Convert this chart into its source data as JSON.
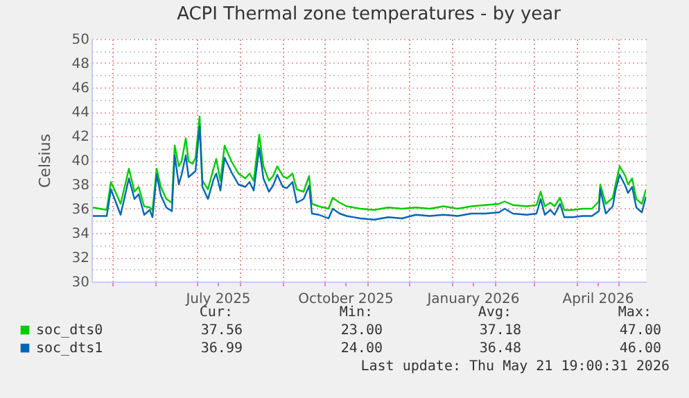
{
  "chart_data": {
    "type": "line",
    "title": "ACPI Thermal zone temperatures - by year",
    "ylabel": "Celsius",
    "x": [
      "2025-04-17",
      "2025-04-27",
      "2025-04-30",
      "2025-05-04",
      "2025-05-07",
      "2025-05-13",
      "2025-05-17",
      "2025-05-20",
      "2025-05-24",
      "2025-05-28",
      "2025-05-30",
      "2025-06-02",
      "2025-06-05",
      "2025-06-09",
      "2025-06-13",
      "2025-06-15",
      "2025-06-18",
      "2025-06-20",
      "2025-06-23",
      "2025-06-25",
      "2025-06-28",
      "2025-06-30",
      "2025-07-03",
      "2025-07-05",
      "2025-07-09",
      "2025-07-13",
      "2025-07-15",
      "2025-07-18",
      "2025-07-21",
      "2025-07-26",
      "2025-07-31",
      "2025-08-05",
      "2025-08-08",
      "2025-08-11",
      "2025-08-15",
      "2025-08-18",
      "2025-08-22",
      "2025-08-25",
      "2025-08-28",
      "2025-09-01",
      "2025-09-04",
      "2025-09-08",
      "2025-09-11",
      "2025-09-16",
      "2025-09-20",
      "2025-09-22",
      "2025-09-27",
      "2025-10-04",
      "2025-10-07",
      "2025-10-12",
      "2025-10-17",
      "2025-10-27",
      "2025-11-06",
      "2025-11-16",
      "2025-11-26",
      "2025-12-06",
      "2025-12-16",
      "2025-12-26",
      "2026-01-05",
      "2026-01-15",
      "2026-01-25",
      "2026-02-04",
      "2026-02-08",
      "2026-02-14",
      "2026-02-24",
      "2026-03-03",
      "2026-03-06",
      "2026-03-09",
      "2026-03-13",
      "2026-03-16",
      "2026-03-20",
      "2026-03-23",
      "2026-03-29",
      "2026-04-05",
      "2026-04-12",
      "2026-04-17",
      "2026-04-18",
      "2026-04-22",
      "2026-04-27",
      "2026-04-29",
      "2026-05-02",
      "2026-05-06",
      "2026-05-08",
      "2026-05-11",
      "2026-05-14",
      "2026-05-18",
      "2026-05-21"
    ],
    "series": [
      {
        "name": "soc_dts0",
        "color": "#00cc00",
        "values": [
          36.1,
          35.9,
          38.2,
          37.2,
          36.4,
          39.3,
          37.4,
          37.8,
          36.2,
          36.1,
          35.9,
          39.3,
          37.8,
          36.8,
          36.5,
          41.2,
          39.5,
          39.9,
          41.8,
          39.9,
          39.7,
          40.2,
          43.6,
          38.3,
          37.6,
          39.3,
          40.1,
          38.3,
          41.2,
          39.9,
          38.9,
          38.5,
          38.9,
          38.3,
          42.1,
          39.5,
          38.3,
          38.7,
          39.5,
          38.7,
          38.5,
          38.9,
          37.6,
          37.4,
          38.7,
          36.4,
          36.2,
          36.0,
          36.9,
          36.5,
          36.2,
          36.0,
          35.9,
          36.1,
          36.0,
          36.1,
          36.0,
          36.2,
          36.0,
          36.2,
          36.3,
          36.4,
          36.6,
          36.3,
          36.2,
          36.3,
          37.4,
          36.2,
          36.5,
          36.2,
          36.9,
          35.9,
          35.9,
          36.0,
          36.0,
          36.6,
          38.0,
          36.4,
          36.9,
          38.0,
          39.5,
          38.7,
          38.0,
          38.5,
          36.8,
          36.4,
          37.6
        ]
      },
      {
        "name": "soc_dts1",
        "color": "#0066b3",
        "values": [
          35.4,
          35.4,
          37.6,
          36.4,
          35.5,
          38.5,
          36.8,
          37.2,
          35.5,
          35.9,
          35.3,
          38.8,
          37.1,
          36.1,
          35.8,
          40.4,
          38.0,
          38.8,
          40.4,
          38.6,
          38.9,
          39.1,
          42.8,
          37.8,
          36.8,
          38.4,
          38.9,
          37.5,
          40.2,
          39.0,
          38.0,
          37.8,
          38.2,
          37.5,
          41.0,
          38.5,
          37.4,
          37.9,
          38.8,
          37.8,
          37.7,
          38.2,
          36.5,
          36.8,
          37.9,
          35.6,
          35.5,
          35.2,
          36.0,
          35.6,
          35.4,
          35.2,
          35.1,
          35.3,
          35.2,
          35.5,
          35.4,
          35.5,
          35.4,
          35.6,
          35.6,
          35.7,
          36.0,
          35.6,
          35.5,
          35.6,
          36.8,
          35.5,
          35.9,
          35.5,
          36.4,
          35.3,
          35.3,
          35.4,
          35.4,
          35.8,
          37.6,
          35.6,
          36.2,
          37.5,
          38.8,
          37.9,
          37.3,
          37.8,
          36.1,
          35.7,
          37.0
        ]
      }
    ],
    "xlim": [
      "2025-04-16",
      "2026-05-21"
    ],
    "xticks": [
      {
        "value": "2025-05-01",
        "label": null
      },
      {
        "value": "2025-06-01",
        "label": null
      },
      {
        "value": "2025-07-01",
        "label": null
      },
      {
        "value": "2025-07-16",
        "label": "July 2025"
      },
      {
        "value": "2025-08-01",
        "label": null
      },
      {
        "value": "2025-09-01",
        "label": null
      },
      {
        "value": "2025-10-01",
        "label": null
      },
      {
        "value": "2025-10-16",
        "label": "October 2025"
      },
      {
        "value": "2025-11-01",
        "label": null
      },
      {
        "value": "2025-12-01",
        "label": null
      },
      {
        "value": "2026-01-01",
        "label": null
      },
      {
        "value": "2026-01-16",
        "label": "January 2026"
      },
      {
        "value": "2026-02-01",
        "label": null
      },
      {
        "value": "2026-03-01",
        "label": null
      },
      {
        "value": "2026-04-01",
        "label": null
      },
      {
        "value": "2026-04-16",
        "label": "April 2026"
      },
      {
        "value": "2026-05-01",
        "label": null
      }
    ],
    "ylim": [
      30,
      50
    ],
    "yticks": [
      30,
      {
        "value": 31,
        "label": null
      },
      32,
      {
        "value": 33,
        "label": null
      },
      34,
      {
        "value": 35,
        "label": null
      },
      36,
      {
        "value": 37,
        "label": null
      },
      38,
      {
        "value": 39,
        "label": null
      },
      40,
      {
        "value": 41,
        "label": null
      },
      42,
      {
        "value": 43,
        "label": null
      },
      44,
      {
        "value": 45,
        "label": null
      },
      46,
      {
        "value": 47,
        "label": null
      },
      48,
      {
        "value": 49,
        "label": null
      },
      50
    ],
    "grid": true,
    "legend": "bottom",
    "marker": "none",
    "line_style": "solid",
    "annotations": [
      "Cur:",
      "Min:",
      "Avg:",
      "Max:",
      "37.56",
      "23.00",
      "37.18",
      "47.00",
      "36.99",
      "24.00",
      "36.48",
      "46.00",
      "Last update: Thu May 21 19:00:31 2026"
    ]
  }
}
